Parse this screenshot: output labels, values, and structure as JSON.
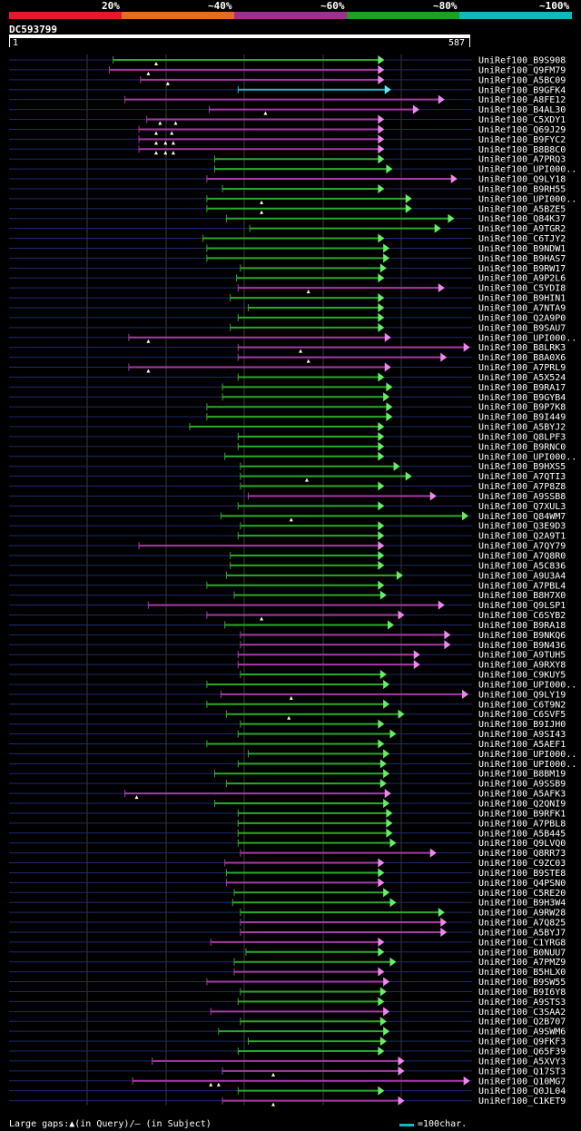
{
  "legend": {
    "colors": [
      "#e6182a",
      "#e07020",
      "#a03090",
      "#20a020",
      "#10b8c0"
    ],
    "labels": [
      "20%",
      "~40%",
      "~60%",
      "~80%",
      "~100%"
    ]
  },
  "query": {
    "name": "DC593799",
    "start": "1",
    "end": "587",
    "length": 587
  },
  "footer": {
    "gaps_text": "Large gaps:▲(in Query)/– (in Subject)",
    "scale_text": "=100char."
  },
  "hits": [
    {
      "n": "UniRef100_B9S908",
      "s": 145,
      "e": 509,
      "c": "g",
      "g": [
        200
      ]
    },
    {
      "n": "UniRef100_Q9FM79",
      "s": 140,
      "e": 509,
      "c": "p",
      "g": [
        190
      ]
    },
    {
      "n": "UniRef100_A5BC09",
      "s": 180,
      "e": 509,
      "c": "p",
      "g": [
        215
      ]
    },
    {
      "n": "UniRef100_B9GFK4",
      "s": 305,
      "e": 518,
      "c": "c",
      "g": []
    },
    {
      "n": "UniRef100_A8FE12",
      "s": 160,
      "e": 590,
      "c": "p",
      "g": []
    },
    {
      "n": "UniRef100_B4AL30",
      "s": 268,
      "e": 556,
      "c": "p",
      "g": [
        340
      ]
    },
    {
      "n": "UniRef100_C5XDY1",
      "s": 188,
      "e": 509,
      "c": "p",
      "g": [
        205,
        225
      ]
    },
    {
      "n": "UniRef100_Q69J29",
      "s": 178,
      "e": 509,
      "c": "p",
      "g": [
        200,
        220
      ]
    },
    {
      "n": "UniRef100_B9FYC2",
      "s": 178,
      "e": 509,
      "c": "p",
      "g": [
        200,
        212,
        222
      ]
    },
    {
      "n": "UniRef100_B8B8C0",
      "s": 178,
      "e": 509,
      "c": "p",
      "g": [
        200,
        212,
        222
      ]
    },
    {
      "n": "UniRef100_A7PRQ3",
      "s": 275,
      "e": 509,
      "c": "g",
      "g": []
    },
    {
      "n": "UniRef100_UPI000..",
      "s": 275,
      "e": 520,
      "c": "g",
      "g": []
    },
    {
      "n": "UniRef100_Q9LY18",
      "s": 265,
      "e": 607,
      "c": "p",
      "g": []
    },
    {
      "n": "UniRef100_B9RH55",
      "s": 285,
      "e": 509,
      "c": "g",
      "g": []
    },
    {
      "n": "UniRef100_UPI000..",
      "s": 265,
      "e": 546,
      "c": "g",
      "g": [
        335
      ]
    },
    {
      "n": "UniRef100_A5BZE5",
      "s": 265,
      "e": 546,
      "c": "g",
      "g": [
        335
      ]
    },
    {
      "n": "UniRef100_Q84K37",
      "s": 290,
      "e": 603,
      "c": "g",
      "g": []
    },
    {
      "n": "UniRef100_A9TGR2",
      "s": 320,
      "e": 585,
      "c": "g",
      "g": []
    },
    {
      "n": "UniRef100_C6TJY2",
      "s": 260,
      "e": 509,
      "c": "g",
      "g": []
    },
    {
      "n": "UniRef100_B9NDW1",
      "s": 265,
      "e": 516,
      "c": "g",
      "g": []
    },
    {
      "n": "UniRef100_B9HAS7",
      "s": 265,
      "e": 516,
      "c": "g",
      "g": []
    },
    {
      "n": "UniRef100_B9RW17",
      "s": 308,
      "e": 512,
      "c": "g",
      "g": []
    },
    {
      "n": "UniRef100_A9P2L6",
      "s": 303,
      "e": 509,
      "c": "g",
      "g": []
    },
    {
      "n": "UniRef100_C5YDI8",
      "s": 305,
      "e": 590,
      "c": "p",
      "g": [
        395
      ]
    },
    {
      "n": "UniRef100_B9HIN1",
      "s": 295,
      "e": 509,
      "c": "g",
      "g": []
    },
    {
      "n": "UniRef100_A7NTA9",
      "s": 318,
      "e": 509,
      "c": "g",
      "g": []
    },
    {
      "n": "UniRef100_Q2A9P0",
      "s": 305,
      "e": 509,
      "c": "g",
      "g": []
    },
    {
      "n": "UniRef100_B9SAU7",
      "s": 295,
      "e": 509,
      "c": "g",
      "g": []
    },
    {
      "n": "UniRef100_UPI000..",
      "s": 165,
      "e": 518,
      "c": "p",
      "g": [
        190
      ]
    },
    {
      "n": "UniRef100_B8LRK3",
      "s": 305,
      "e": 624,
      "c": "p",
      "g": [
        385
      ]
    },
    {
      "n": "UniRef100_B8A0X6",
      "s": 305,
      "e": 593,
      "c": "p",
      "g": [
        395
      ]
    },
    {
      "n": "UniRef100_A7PRL9",
      "s": 165,
      "e": 518,
      "c": "p",
      "g": [
        190
      ]
    },
    {
      "n": "UniRef100_A5X524",
      "s": 305,
      "e": 509,
      "c": "g",
      "g": []
    },
    {
      "n": "UniRef100_B9RA17",
      "s": 285,
      "e": 520,
      "c": "g",
      "g": []
    },
    {
      "n": "UniRef100_B9GYB4",
      "s": 285,
      "e": 516,
      "c": "g",
      "g": []
    },
    {
      "n": "UniRef100_B9P7K8",
      "s": 265,
      "e": 520,
      "c": "g",
      "g": []
    },
    {
      "n": "UniRef100_B9I449",
      "s": 265,
      "e": 520,
      "c": "g",
      "g": []
    },
    {
      "n": "UniRef100_A5BYJ2",
      "s": 243,
      "e": 509,
      "c": "g",
      "g": []
    },
    {
      "n": "UniRef100_Q8LPF3",
      "s": 305,
      "e": 509,
      "c": "g",
      "g": []
    },
    {
      "n": "UniRef100_B9RNC0",
      "s": 305,
      "e": 509,
      "c": "g",
      "g": []
    },
    {
      "n": "UniRef100_UPI000..",
      "s": 288,
      "e": 509,
      "c": "g",
      "g": []
    },
    {
      "n": "UniRef100_B9HXS5",
      "s": 308,
      "e": 530,
      "c": "g",
      "g": []
    },
    {
      "n": "UniRef100_A7QTI3",
      "s": 308,
      "e": 546,
      "c": "g",
      "g": [
        393
      ]
    },
    {
      "n": "UniRef100_A7P8Z8",
      "s": 308,
      "e": 509,
      "c": "g",
      "g": []
    },
    {
      "n": "UniRef100_A9SSB8",
      "s": 318,
      "e": 579,
      "c": "p",
      "g": []
    },
    {
      "n": "UniRef100_Q7XUL3",
      "s": 305,
      "e": 509,
      "c": "g",
      "g": []
    },
    {
      "n": "UniRef100_Q84WM7",
      "s": 283,
      "e": 622,
      "c": "g",
      "g": [
        373
      ]
    },
    {
      "n": "UniRef100_Q3E9D3",
      "s": 308,
      "e": 509,
      "c": "g",
      "g": []
    },
    {
      "n": "UniRef100_Q2A9T1",
      "s": 305,
      "e": 509,
      "c": "g",
      "g": []
    },
    {
      "n": "UniRef100_A7QY79",
      "s": 178,
      "e": 509,
      "c": "p",
      "g": []
    },
    {
      "n": "UniRef100_A7Q8R0",
      "s": 295,
      "e": 509,
      "c": "g",
      "g": []
    },
    {
      "n": "UniRef100_A5C836",
      "s": 295,
      "e": 509,
      "c": "g",
      "g": []
    },
    {
      "n": "UniRef100_A9U3A4",
      "s": 290,
      "e": 534,
      "c": "g",
      "g": []
    },
    {
      "n": "UniRef100_A7PBL4",
      "s": 265,
      "e": 509,
      "c": "g",
      "g": []
    },
    {
      "n": "UniRef100_B8H7X0",
      "s": 300,
      "e": 512,
      "c": "g",
      "g": []
    },
    {
      "n": "UniRef100_Q9LSP1",
      "s": 190,
      "e": 590,
      "c": "p",
      "g": []
    },
    {
      "n": "UniRef100_C6SYB2",
      "s": 265,
      "e": 536,
      "c": "p",
      "g": [
        335
      ]
    },
    {
      "n": "UniRef100_B9RA18",
      "s": 288,
      "e": 522,
      "c": "g",
      "g": []
    },
    {
      "n": "UniRef100_B9NKQ6",
      "s": 308,
      "e": 598,
      "c": "p",
      "g": []
    },
    {
      "n": "UniRef100_B9N436",
      "s": 308,
      "e": 598,
      "c": "p",
      "g": []
    },
    {
      "n": "UniRef100_A9TUH5",
      "s": 305,
      "e": 557,
      "c": "p",
      "g": []
    },
    {
      "n": "UniRef100_A9RXY8",
      "s": 305,
      "e": 557,
      "c": "p",
      "g": []
    },
    {
      "n": "UniRef100_C9KUY5",
      "s": 308,
      "e": 512,
      "c": "g",
      "g": []
    },
    {
      "n": "UniRef100_UPI000..",
      "s": 265,
      "e": 516,
      "c": "g",
      "g": []
    },
    {
      "n": "UniRef100_Q9LY19",
      "s": 283,
      "e": 622,
      "c": "p",
      "g": [
        373
      ]
    },
    {
      "n": "UniRef100_C6T9N2",
      "s": 265,
      "e": 516,
      "c": "g",
      "g": []
    },
    {
      "n": "UniRef100_C6SVF5",
      "s": 290,
      "e": 536,
      "c": "g",
      "g": [
        370
      ]
    },
    {
      "n": "UniRef100_B9IJH0",
      "s": 308,
      "e": 509,
      "c": "g",
      "g": []
    },
    {
      "n": "UniRef100_A9SI43",
      "s": 305,
      "e": 525,
      "c": "g",
      "g": []
    },
    {
      "n": "UniRef100_A5AEF1",
      "s": 265,
      "e": 509,
      "c": "g",
      "g": []
    },
    {
      "n": "UniRef100_UPI000..",
      "s": 318,
      "e": 516,
      "c": "g",
      "g": []
    },
    {
      "n": "UniRef100_UPI000..",
      "s": 305,
      "e": 512,
      "c": "g",
      "g": []
    },
    {
      "n": "UniRef100_B8BM19",
      "s": 275,
      "e": 516,
      "c": "g",
      "g": []
    },
    {
      "n": "UniRef100_A9SSB9",
      "s": 290,
      "e": 512,
      "c": "g",
      "g": []
    },
    {
      "n": "UniRef100_A5AFK3",
      "s": 160,
      "e": 518,
      "c": "p",
      "g": [
        175
      ]
    },
    {
      "n": "UniRef100_Q2QNI9",
      "s": 275,
      "e": 516,
      "c": "g",
      "g": []
    },
    {
      "n": "UniRef100_B9RFK1",
      "s": 305,
      "e": 520,
      "c": "g",
      "g": []
    },
    {
      "n": "UniRef100_A7PBL8",
      "s": 305,
      "e": 520,
      "c": "g",
      "g": []
    },
    {
      "n": "UniRef100_A5B445",
      "s": 305,
      "e": 520,
      "c": "g",
      "g": []
    },
    {
      "n": "UniRef100_Q9LVQ0",
      "s": 305,
      "e": 525,
      "c": "g",
      "g": []
    },
    {
      "n": "UniRef100_Q8RR73",
      "s": 308,
      "e": 579,
      "c": "p",
      "g": []
    },
    {
      "n": "UniRef100_C9ZC03",
      "s": 288,
      "e": 509,
      "c": "p",
      "g": []
    },
    {
      "n": "UniRef100_B9STE8",
      "s": 290,
      "e": 509,
      "c": "g",
      "g": []
    },
    {
      "n": "UniRef100_Q4PSN0",
      "s": 290,
      "e": 509,
      "c": "p",
      "g": []
    },
    {
      "n": "UniRef100_C5RE20",
      "s": 300,
      "e": 516,
      "c": "g",
      "g": []
    },
    {
      "n": "UniRef100_B9H3W4",
      "s": 298,
      "e": 525,
      "c": "g",
      "g": []
    },
    {
      "n": "UniRef100_A9RW28",
      "s": 308,
      "e": 590,
      "c": "g",
      "g": []
    },
    {
      "n": "UniRef100_A7Q825",
      "s": 308,
      "e": 593,
      "c": "p",
      "g": []
    },
    {
      "n": "UniRef100_A5BYJ7",
      "s": 308,
      "e": 593,
      "c": "p",
      "g": []
    },
    {
      "n": "UniRef100_C1YRG8",
      "s": 270,
      "e": 509,
      "c": "p",
      "g": []
    },
    {
      "n": "UniRef100_B0NUU7",
      "s": 315,
      "e": 509,
      "c": "g",
      "g": []
    },
    {
      "n": "UniRef100_A7PMZ9",
      "s": 300,
      "e": 525,
      "c": "g",
      "g": []
    },
    {
      "n": "UniRef100_B5HLX0",
      "s": 300,
      "e": 509,
      "c": "p",
      "g": []
    },
    {
      "n": "UniRef100_B9SW55",
      "s": 265,
      "e": 516,
      "c": "p",
      "g": []
    },
    {
      "n": "UniRef100_B9I6Y8",
      "s": 308,
      "e": 512,
      "c": "g",
      "g": []
    },
    {
      "n": "UniRef100_A9STS3",
      "s": 305,
      "e": 509,
      "c": "g",
      "g": []
    },
    {
      "n": "UniRef100_C3SAA2",
      "s": 270,
      "e": 516,
      "c": "p",
      "g": []
    },
    {
      "n": "UniRef100_Q2B707",
      "s": 308,
      "e": 512,
      "c": "g",
      "g": []
    },
    {
      "n": "UniRef100_A9SWM6",
      "s": 280,
      "e": 516,
      "c": "g",
      "g": []
    },
    {
      "n": "UniRef100_Q9FKF3",
      "s": 318,
      "e": 512,
      "c": "g",
      "g": []
    },
    {
      "n": "UniRef100_Q65F39",
      "s": 305,
      "e": 509,
      "c": "g",
      "g": []
    },
    {
      "n": "UniRef100_A5XVY3",
      "s": 195,
      "e": 536,
      "c": "p",
      "g": []
    },
    {
      "n": "UniRef100_Q17ST3",
      "s": 285,
      "e": 536,
      "c": "p",
      "g": [
        350
      ]
    },
    {
      "n": "UniRef100_Q10MG7",
      "s": 170,
      "e": 624,
      "c": "p",
      "g": [
        270,
        280
      ]
    },
    {
      "n": "UniRef100_Q0JL04",
      "s": 305,
      "e": 509,
      "c": "g",
      "g": []
    },
    {
      "n": "UniRef100_C1KET9",
      "s": 285,
      "e": 536,
      "c": "p",
      "g": [
        350
      ]
    }
  ]
}
